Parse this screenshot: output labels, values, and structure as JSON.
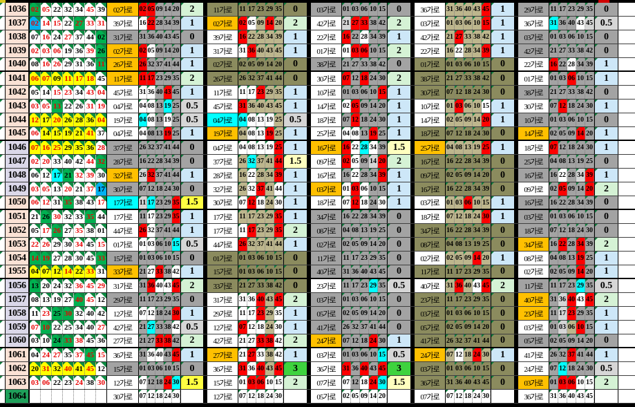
{
  "suffix": "가로",
  "colors": {
    "w": "#FFFFFF",
    "y": "#FFFF00",
    "g": "#00B050",
    "c": "#00FFFF",
    "b": "#00B0F0",
    "r": "#FF0000",
    "a": "#FFC000",
    "d": "#A3A3A3",
    "l": "#D6D6D6",
    "o": "#8B8B5E",
    "t": "#BDB68D",
    "e": "#D5F2D5",
    "s": "#CDE7F8",
    "G": "#3ED33E",
    "Y": "#FFFF42",
    "m": "#FFFFBF",
    "p": "#FBE2D5",
    "v": "#DBD8E9",
    "n": "#1FA05A",
    "text_red": "#E80000",
    "text_black": "#000000",
    "grid_border": "#000000",
    "triangle_green": "#0E7B3C",
    "top_red_mark": "#D00000"
  },
  "thick_after": [
    "1040",
    "1045",
    "1050",
    "1955",
    "1060"
  ],
  "rows": [
    {
      "id": "1036",
      "hb": "p",
      "win": [
        "02gr",
        "05wr",
        "22wk",
        "32wk",
        "34wk",
        "45wr",
        "39wk"
      ],
      "g": [
        [
          "02a",
          "02r 05r 09d 14d 20d",
          "2e"
        ],
        [
          "11o",
          "11o 17o 23o 29o 35o",
          "0o"
        ],
        [
          "03d",
          "01d 03d 06d 10d 15d",
          "0d"
        ],
        [
          "36w",
          "31t 36t 40t 43t 45r",
          "1s"
        ],
        [
          "29d",
          "11d 17d 23d 29d 35d",
          "0d"
        ]
      ]
    },
    {
      "id": "1037",
      "hb": "p",
      "win": [
        "02br",
        "14wr",
        "15wr",
        "22wk",
        "27gr",
        "33wr",
        "31wr"
      ],
      "g": [
        [
          "39w",
          "16w 22r 28d 34d 39d",
          "1s"
        ],
        [
          "02a",
          "02r 05w 09t 14r 20t",
          "2e"
        ],
        [
          "42w",
          "21l 27r 33r 38d 42d",
          "2e"
        ],
        [
          "03w",
          "01t 03t 06t 10t 15r",
          "1s"
        ],
        [
          "36w",
          "31c 36d 40d 43w 45l",
          "0.5l"
        ]
      ]
    },
    {
      "id": "1038",
      "hb": "p",
      "win": [
        "07wk",
        "16wr",
        "24wk",
        "27wr",
        "37wk",
        "44wk",
        "02gk"
      ],
      "g": [
        [
          "31d",
          "31d 36d 40d 43d 45d",
          "0d"
        ],
        [
          "39w",
          "16r 22t 28t 34t 39t",
          "1s"
        ],
        [
          "22w",
          "16r 22d 28w 34d 39d",
          "1s"
        ],
        [
          "42w",
          "21t 27r 33t 38t 42t",
          "1s"
        ],
        [
          "03d",
          "01d 03d 06d 10d 15d",
          "0d"
        ]
      ]
    },
    {
      "id": "1039",
      "hb": "p",
      "win": [
        "02wr",
        "03wr",
        "06wr",
        "19wk",
        "36wk",
        "39wr",
        "26gk"
      ],
      "g": [
        [
          "02a",
          "02r 05w 09d 14d 20d",
          "1s"
        ],
        [
          "31w",
          "31w 36r 40t 43t 45t",
          "1s"
        ],
        [
          "01w",
          "01w 03r 06r 10d 15d",
          "2e"
        ],
        [
          "22w",
          "16t 22w 28t 34t 39r",
          "1s"
        ],
        [
          "42d",
          "21d 27d 33d 38d 42d",
          "0d"
        ]
      ]
    },
    {
      "id": "1040",
      "hb": "p",
      "win": [
        "08wk",
        "16wr",
        "26wr",
        "29wk",
        "31wk",
        "36wk",
        "11gr"
      ],
      "g": [
        [
          "26a",
          "26r 32d 37d 41d 44d",
          "1s"
        ],
        [
          "02o",
          "02o 05o 09o 14o 20o",
          "0o"
        ],
        [
          "38d",
          "21d 27d 33d 38d 42d",
          "0d"
        ],
        [
          "01o",
          "01o 03o 06o 10o 15o",
          "0o"
        ],
        [
          "22w",
          "16r 22d 28w 34d 39d",
          "1s"
        ]
      ]
    },
    {
      "id": "1041",
      "hb": "p",
      "win": [
        "06yr",
        "07yr",
        "09yk",
        "11yr",
        "17yr",
        "18yr",
        "45wk"
      ],
      "g": [
        [
          "11a",
          "11r 17r 23d 29d 35d",
          "2e"
        ],
        [
          "26o",
          "26o 32o 37o 41o 44o",
          "0o"
        ],
        [
          "30w",
          "07r 12d 18r 24d 30d",
          "2e"
        ],
        [
          "38o",
          "21o 27o 33o 38o 42o",
          "0o"
        ],
        [
          "01w",
          "01d 03d 06r 10d 15d",
          "1s"
        ]
      ]
    },
    {
      "id": "1042",
      "hb": "p",
      "win": [
        "05wk",
        "14wk",
        "15wr",
        "23wr",
        "34wk",
        "43wr",
        "04wr"
      ],
      "g": [
        [
          "45w",
          "31w 36w 40d 43r 45d",
          "1s"
        ],
        [
          "11w",
          "11w 17w 23r 29t 35t",
          "1s"
        ],
        [
          "10w",
          "01d 03d 06d 10d 15r",
          "1s"
        ],
        [
          "30o",
          "07o 12o 18o 24o 30o",
          "0o"
        ],
        [
          "38d",
          "21d 27d 33d 38d 42d",
          "0d"
        ]
      ]
    },
    {
      "id": "1043",
      "hb": "p",
      "win": [
        "03wr",
        "05wr",
        "13gr",
        "22wk",
        "26wk",
        "31wr",
        "19wr"
      ],
      "g": [
        [
          "04w",
          "04w 08w 13d 19c 25d",
          "0.5l"
        ],
        [
          "45w",
          "31r 36t 40t 43t 45t",
          "1s"
        ],
        [
          "14w",
          "02w 05r 09d 14d 20d",
          "1s"
        ],
        [
          "10w",
          "01t 03r 06t 10t 15w",
          "1s"
        ],
        [
          "30w",
          "07d 12r 18d 24d 30d",
          "1s"
        ]
      ]
    },
    {
      "id": "1044",
      "hb": "p",
      "win": [
        "12yr",
        "17yk",
        "20yr",
        "26yk",
        "28yk",
        "36yk",
        "04yr"
      ],
      "g": [
        [
          "19w",
          "04c 08w 13d 19w 25d",
          "0.5l"
        ],
        [
          "04c",
          "04c 08w 13w 19w 25t",
          "0.5l"
        ],
        [
          "18w",
          "07d 12r 18d 24d 30d",
          "1s"
        ],
        [
          "14w",
          "02t 05t 09t 14t 20r",
          "1s"
        ],
        [
          "10d",
          "01d 03d 06d 10d 15d",
          "0d"
        ]
      ]
    },
    {
      "id": "1045",
      "hb": "p",
      "win": [
        "06wr",
        "14yk",
        "15yk",
        "19yk",
        "21yk",
        "41yr",
        "37wk"
      ],
      "g": [
        [
          "04w",
          "04w 08d 13d 19r 25d",
          "1s"
        ],
        [
          "19a",
          "04t 08w 13w 19r 25t",
          "1s"
        ],
        [
          "25w",
          "04w 08w 13d 19r 25d",
          "1s"
        ],
        [
          "18o",
          "07o 12o 18o 24o 30o",
          "0o"
        ],
        [
          "14a",
          "02d 05d 09d 14r 20d",
          "1s"
        ]
      ]
    },
    {
      "id": "1046",
      "hb": "v",
      "win": [
        "07yr",
        "16yr",
        "25yr",
        "29yk",
        "35yk",
        "36yk",
        "28wr"
      ],
      "g": [
        [
          "37d",
          "26d 32d 37d 41d 44d",
          "0d"
        ],
        [
          "04w",
          "04w 08w 13w 19w 25r",
          "1s"
        ],
        [
          "16a",
          "16r 22w 28c 34w 39d",
          "1.5m"
        ],
        [
          "25a",
          "04t 08t 13t 19t 25r",
          "1s"
        ],
        [
          "18w",
          "07r 12d 18d 24d 30d",
          "1s"
        ]
      ]
    },
    {
      "id": "1047",
      "hb": "v",
      "win": [
        "02wr",
        "20wr",
        "33wk",
        "40wk",
        "42wk",
        "44wr",
        "32gr"
      ],
      "g": [
        [
          "28d",
          "16d 22d 28d 34d 39d",
          "0d"
        ],
        [
          "37w",
          "26t 32c 37t 41t 44r",
          "1.5m"
        ],
        [
          "09w",
          "02r 05w 09d 14l 20r",
          "2e"
        ],
        [
          "16o",
          "16o 22o 28o 34o 39o",
          "0o"
        ],
        [
          "25d",
          "04d 08d 13d 19d 25d",
          "0d"
        ]
      ]
    },
    {
      "id": "1048",
      "hb": "v",
      "win": [
        "06wk",
        "12wk",
        "17ck",
        "21gk",
        "32wr",
        "39wr",
        "30wk"
      ],
      "g": [
        [
          "32a",
          "26l 32r 37d 41d 44d",
          "1s"
        ],
        [
          "28w",
          "16t 22w 28t 34t 39r",
          "1s"
        ],
        [
          "16w",
          "16d 22w 28d 34d 39r",
          "1s"
        ],
        [
          "09o",
          "02o 05o 09o 14o 20o",
          "0o"
        ],
        [
          "16d",
          "16d 22w 28d 34l 39r",
          "1s"
        ]
      ]
    },
    {
      "id": "1049",
      "hb": "v",
      "win": [
        "03wr",
        "05wr",
        "13wk",
        "20wr",
        "21wk",
        "37wr",
        "17bk"
      ],
      "g": [
        [
          "30d",
          "07d 12d 18d 24d 30d",
          "0d"
        ],
        [
          "32w",
          "26t 32w 37r 41t 44w",
          "1s"
        ],
        [
          "03a",
          "01w 03r 06w 10d 15d",
          "1s"
        ],
        [
          "16o",
          "16o 22o 28o 34o 39o",
          "0o"
        ],
        [
          "09w",
          "02d 05r 09d 14d 20r",
          "2e"
        ]
      ]
    },
    {
      "id": "1050",
      "hb": "p",
      "win": [
        "06wr",
        "12wr",
        "31wk",
        "35gr",
        "38wk",
        "43wk",
        "17wr"
      ],
      "g": [
        [
          "17c",
          "11l 17c 23d 29d 35r",
          "1.5Y"
        ],
        [
          "30w",
          "07w 12r 18w 24t 30w",
          "1s"
        ],
        [
          "18w",
          "07w 12r 18w 24d 30w",
          "1s"
        ],
        [
          "03w",
          "01t 03t 06r 10t 15t",
          "1s"
        ],
        [
          "16d",
          "16d 22d 28d 34d 39d",
          "0d"
        ]
      ]
    },
    {
      "id": "1051",
      "hb": "p",
      "win": [
        "21wk",
        "26gk",
        "30wr",
        "32wk",
        "33wk",
        "35gr",
        "44wk"
      ],
      "g": [
        [
          "17w",
          "11d 17w 23d 29d 35r",
          "1s"
        ],
        [
          "17w",
          "11t 17t 23t 29t 35r",
          "1s"
        ],
        [
          "34d",
          "16d 22d 28d 34d 39d",
          "0d"
        ],
        [
          "18w",
          "07t 12t 18t 24t 30r",
          "1s"
        ],
        [
          "03d",
          "01d 03d 06d 10d 15d",
          "0d"
        ]
      ]
    },
    {
      "id": "1052",
      "hb": "p",
      "win": [
        "05wk",
        "17wr",
        "26gr",
        "27wk",
        "35wr",
        "38wk",
        "01wk"
      ],
      "g": [
        [
          "44w",
          "26r 32w 37d 41d 44d",
          "1s"
        ],
        [
          "17w",
          "11w 17r 23t 29t 35r",
          "2e"
        ],
        [
          "08d",
          "04d 08d 13d 19d 25d",
          "0d"
        ],
        [
          "34o",
          "16o 22o 28o 34o 39o",
          "0o"
        ],
        [
          "18d",
          "07d 12d 18d 24d 30d",
          "0d"
        ]
      ]
    },
    {
      "id": "1053",
      "hb": "p",
      "win": [
        "22wr",
        "26wr",
        "29wk",
        "30wk",
        "34wr",
        "45wk",
        "15wr"
      ],
      "g": [
        [
          "01w",
          "01w 03w 06d 10d 15c",
          "0.5l"
        ],
        [
          "44w",
          "26r 32t 37t 41t 44t",
          "1s"
        ],
        [
          "02d",
          "02d 05d 09d 14d 20d",
          "0d"
        ],
        [
          "08o",
          "04o 08o 13o 19o 25o",
          "0o"
        ],
        [
          "34a",
          "16d 22r 28d 34r 39d",
          "2e"
        ]
      ]
    },
    {
      "id": "1054",
      "hb": "p",
      "win": [
        "14gr",
        "19gr",
        "27wk",
        "28wk",
        "30wk",
        "45wk",
        "33gr"
      ],
      "g": [
        [
          "15d",
          "01d 03d 06d 10d 15d",
          "0d"
        ],
        [
          "01o",
          "01o 03o 06o 10o 15o",
          "0o"
        ],
        [
          "11d",
          "11d 17d 23d 29d 35d",
          "0d"
        ],
        [
          "02w",
          "02t 05t 09t 14r 20t",
          "1s"
        ],
        [
          "08w",
          "04d 08d 13d 19r 25d",
          "1s"
        ]
      ]
    },
    {
      "id": "1955",
      "hb": "p",
      "win": [
        "04yk",
        "07yk",
        "12yk",
        "14yr",
        "22yk",
        "33yr",
        "31wk"
      ],
      "g": [
        [
          "33a",
          "21d 27w 33r 38d 42w",
          "1s"
        ],
        [
          "15o",
          "01o 03o 06o 10o 15o",
          "0o"
        ],
        [
          "40d",
          "31d 36d 40d 43d 45d",
          "0d"
        ],
        [
          "11o",
          "11o 17o 23o 29o 35o",
          "0o"
        ],
        [
          "02w",
          "02d 05d 09d 14r 20d",
          "1s"
        ]
      ]
    },
    {
      "id": "1056",
      "hb": "v",
      "win": [
        "13gk",
        "20wk",
        "24wk",
        "32wk",
        "36wr",
        "45wr",
        "29wr"
      ],
      "g": [
        [
          "31w",
          "31d 36r 40w 43w 45r",
          "2e"
        ],
        [
          "33o",
          "21o 27o 33o 38o 42o",
          "0o"
        ],
        [
          "23w",
          "11d 17d 23d 29c 35d",
          "0.5l"
        ],
        [
          "40w",
          "31t 36r 40t 43w 45r",
          "2e"
        ],
        [
          "11d",
          "11d 17d 23d 29c 35d",
          "0.5l"
        ]
      ]
    },
    {
      "id": "1057",
      "hb": "v",
      "win": [
        "08wk",
        "13wk",
        "19wk",
        "27wk",
        "40gr",
        "45wr",
        "12wk"
      ],
      "g": [
        [
          "29d",
          "11d 17d 23d 29d 35d",
          "0d"
        ],
        [
          "31w",
          "31w 36w 40r 43t 45r",
          "2e"
        ],
        [
          "03d",
          "01d 03d 06d 10d 15d",
          "0d"
        ],
        [
          "23o",
          "11o 17o 23o 29o 35o",
          "0o"
        ],
        [
          "40a",
          "31d 36l 40r 43w 45r",
          "2e"
        ]
      ]
    },
    {
      "id": "1058",
      "hb": "v",
      "win": [
        "11wk",
        "23wr",
        "25gk",
        "30gr",
        "32wk",
        "40wk",
        "42wk"
      ],
      "g": [
        [
          "12w",
          "07w 12w 18d 24d 30r",
          "1s"
        ],
        [
          "29w",
          "11w 17w 23r 29t 35w",
          "1s"
        ],
        [
          "05d",
          "02d 05d 09d 14d 20d",
          "0d"
        ],
        [
          "03o",
          "01o 03o 06o 10o 15o",
          "0o"
        ],
        [
          "23a",
          "11d 17l 23r 29d 35d",
          "1s"
        ]
      ]
    },
    {
      "id": "1059",
      "hb": "v",
      "win": [
        "07wr",
        "10gr",
        "22wk",
        "25wk",
        "34wk",
        "40wk",
        "27wr"
      ],
      "g": [
        [
          "42w",
          "21d 27c 33d 38d 42w",
          "0.5l"
        ],
        [
          "12w",
          "07r 12w 18w 24t 30w",
          "1s"
        ],
        [
          "41d",
          "26d 32d 37d 41d 44d",
          "0d"
        ],
        [
          "05o",
          "02o 05o 09o 14o 20o",
          "0o"
        ],
        [
          "03w",
          "01d 03l 06t 10r 15d",
          "1s"
        ]
      ]
    },
    {
      "id": "1060",
      "hb": "v",
      "win": [
        "03wk",
        "10wk",
        "24gk",
        "33gr",
        "38wr",
        "45wk",
        "36wk"
      ],
      "g": [
        [
          "27w",
          "21d 27d 33r 38r 42d",
          "2e"
        ],
        [
          "42w",
          "21w 27w 33r 38r 42w",
          "2e"
        ],
        [
          "24a",
          "07d 12d 18d 24r 30d",
          "1s"
        ],
        [
          "41o",
          "26o 32o 37o 41o 44o",
          "0o"
        ],
        [
          "05d",
          "02d 05d 09d 14d 20d",
          "0d"
        ]
      ]
    },
    {
      "id": "1061",
      "hb": "p",
      "win": [
        "04wk",
        "24wr",
        "27wr",
        "35wk",
        "37wr",
        "45gr",
        "15wr"
      ],
      "g": [
        [
          "36w",
          "31d 36w 40w 43d 45r",
          "1s"
        ],
        [
          "27a",
          "21w 27r 33w 38t 42w",
          "1s"
        ],
        [
          "03w",
          "01d 03d 06d 10d 15c",
          "0.5l"
        ],
        [
          "24a",
          "07t 12w 18t 24r 30t",
          "1s"
        ],
        [
          "41w",
          "26d 32d 37r 41d 44d",
          "1s"
        ]
      ]
    },
    {
      "id": "1062",
      "hb": "p",
      "win": [
        "20yk",
        "31yr",
        "32yk",
        "40yr",
        "41yk",
        "45yr",
        "12wk"
      ],
      "g": [
        [
          "15d",
          "01d 03d 06d 10d 15d",
          "0d"
        ],
        [
          "36w",
          "31r 36w 40r 43t 45r",
          "3G"
        ],
        [
          "36w",
          "31r 36d 40r 43d 45r",
          "3G"
        ],
        [
          "03o",
          "01o 03o 06o 10o 15o",
          "0o"
        ],
        [
          "24w",
          "07d 12c 18d 24d 30d",
          "0.5l"
        ]
      ]
    },
    {
      "id": "1063",
      "hb": "p",
      "win": [
        "03wr",
        "06wr",
        "22wk",
        "23wk",
        "24wr",
        "38wk",
        "30wr"
      ],
      "g": [
        [
          "12w",
          "07w 12d 18d 24r 30c",
          "1.5Y"
        ],
        [
          "15w",
          "01w 03r 06r 10w 15w",
          "2e"
        ],
        [
          "07w",
          "07w 12d 18w 24r 30c",
          "1.5m"
        ],
        [
          "36o",
          "31o 36o 40o 43o 45o",
          "0o"
        ],
        [
          "03a",
          "01d 03r 06r 10w 15w",
          "2e"
        ]
      ]
    },
    {
      "id": "1064",
      "hb": "n",
      "win": [
        "",
        "",
        "",
        "",
        "",
        "",
        ""
      ],
      "g": [
        [
          "30w",
          "07w 12w 18w 24w 30w",
          ""
        ],
        [
          "12w",
          "07w 12w 18w 24w 30w",
          ""
        ],
        [
          "05w",
          "02w 05w 09w 14w 20w",
          ""
        ],
        [
          "07w",
          "07w 12w 18w 24w 30w",
          ""
        ],
        [
          "36w",
          "31w 36w 40w 43w 45w",
          ""
        ]
      ]
    }
  ]
}
